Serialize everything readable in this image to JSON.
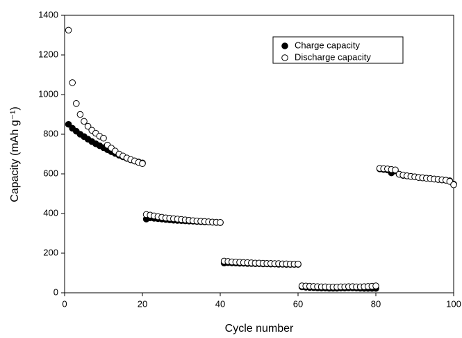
{
  "chart_data": {
    "type": "scatter",
    "xlabel": "Cycle number",
    "ylabel": "Capacity (mAh g⁻¹)",
    "xlim": [
      0,
      100
    ],
    "ylim": [
      0,
      1400
    ],
    "xticks": [
      0,
      20,
      40,
      60,
      80,
      100
    ],
    "yticks": [
      0,
      200,
      400,
      600,
      800,
      1000,
      1200,
      1400
    ],
    "legend": "upper-right",
    "x": [
      1,
      2,
      3,
      4,
      5,
      6,
      7,
      8,
      9,
      10,
      11,
      12,
      13,
      14,
      15,
      16,
      17,
      18,
      19,
      20,
      21,
      22,
      23,
      24,
      25,
      26,
      27,
      28,
      29,
      30,
      31,
      32,
      33,
      34,
      35,
      36,
      37,
      38,
      39,
      40,
      41,
      42,
      43,
      44,
      45,
      46,
      47,
      48,
      49,
      50,
      51,
      52,
      53,
      54,
      55,
      56,
      57,
      58,
      59,
      60,
      61,
      62,
      63,
      64,
      65,
      66,
      67,
      68,
      69,
      70,
      71,
      72,
      73,
      74,
      75,
      76,
      77,
      78,
      79,
      80,
      81,
      82,
      83,
      84,
      85,
      86,
      87,
      88,
      89,
      90,
      91,
      92,
      93,
      94,
      95,
      96,
      97,
      98,
      99,
      100
    ],
    "series": [
      {
        "name": "Charge capacity",
        "color": "#000000",
        "values": [
          850,
          830,
          815,
          800,
          788,
          775,
          763,
          752,
          742,
          732,
          722,
          712,
          703,
          694,
          686,
          678,
          671,
          665,
          660,
          655,
          372,
          378,
          376,
          374,
          372,
          370,
          368,
          366,
          365,
          364,
          363,
          362,
          361,
          360,
          359,
          358,
          357,
          356,
          355,
          354,
          150,
          152,
          151,
          150,
          149,
          149,
          148,
          148,
          147,
          147,
          146,
          146,
          145,
          145,
          144,
          144,
          143,
          143,
          143,
          143,
          30,
          28,
          27,
          26,
          25,
          24,
          24,
          23,
          23,
          23,
          24,
          24,
          25,
          25,
          24,
          23,
          22,
          22,
          22,
          22,
          625,
          622,
          620,
          605,
          615,
          598,
          592,
          590,
          587,
          585,
          582,
          580,
          578,
          576,
          574,
          572,
          570,
          568,
          565,
          548
        ]
      },
      {
        "name": "Discharge capacity",
        "color": "#ffffff",
        "values": [
          1325,
          1060,
          955,
          900,
          865,
          840,
          820,
          805,
          790,
          780,
          745,
          730,
          715,
          700,
          690,
          680,
          672,
          665,
          658,
          652,
          395,
          392,
          388,
          384,
          381,
          378,
          376,
          374,
          372,
          370,
          368,
          366,
          364,
          362,
          361,
          360,
          358,
          357,
          356,
          355,
          160,
          158,
          156,
          155,
          154,
          153,
          152,
          151,
          150,
          150,
          149,
          148,
          148,
          147,
          147,
          146,
          146,
          145,
          145,
          145,
          35,
          34,
          33,
          32,
          31,
          30,
          30,
          29,
          29,
          29,
          30,
          30,
          31,
          31,
          30,
          30,
          31,
          32,
          33,
          35,
          628,
          626,
          625,
          622,
          620,
          598,
          594,
          590,
          587,
          585,
          582,
          580,
          578,
          576,
          574,
          572,
          570,
          568,
          562,
          545
        ]
      }
    ]
  }
}
